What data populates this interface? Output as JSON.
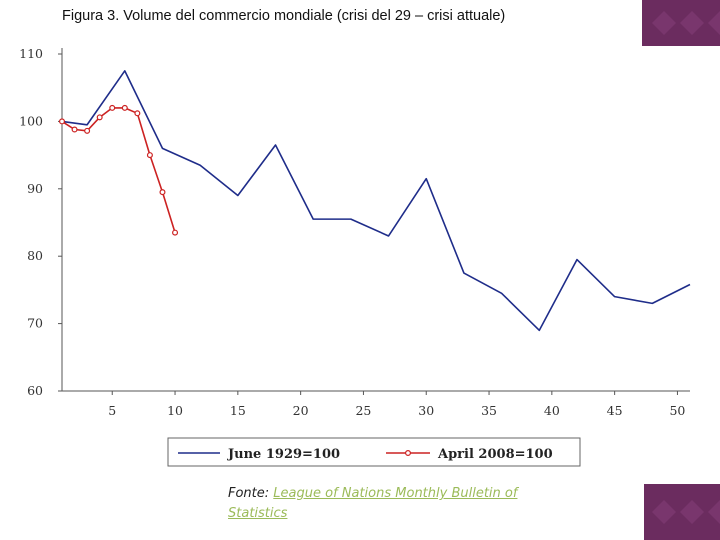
{
  "title": "Figura 3. Volume del commercio mondiale (crisi del 29 – crisi attuale)",
  "source": {
    "prefix": "Fonte: ",
    "link_text": "League of Nations Monthly Bulletin of Statistics"
  },
  "colors": {
    "series_1929": "#1f2d8a",
    "series_2008": "#cc2222",
    "deco": "#6b2c5f",
    "link": "#9bbb59"
  },
  "chart_data": {
    "type": "line",
    "title": "",
    "xlabel": "",
    "ylabel": "",
    "xlim": [
      1,
      51
    ],
    "ylim": [
      60,
      110
    ],
    "xticks": [
      5,
      10,
      15,
      20,
      25,
      30,
      35,
      40,
      45,
      50
    ],
    "xtick_labels": [
      "5",
      "10",
      "15",
      "20",
      "25",
      "30",
      "35",
      "40",
      "45",
      "50"
    ],
    "yticks": [
      60,
      70,
      80,
      90,
      100,
      110
    ],
    "ytick_labels": [
      "60",
      "70",
      "80",
      "90",
      "100",
      "110"
    ],
    "grid": false,
    "legend": "bottom",
    "series": [
      {
        "name": "June 1929=100",
        "markers": false,
        "x": [
          1,
          3,
          6,
          9,
          12,
          15,
          18,
          21,
          24,
          27,
          30,
          33,
          36,
          39,
          42,
          45,
          48,
          51
        ],
        "y": [
          100,
          99.5,
          107.5,
          96,
          93.5,
          89,
          96.5,
          85.5,
          85.5,
          83,
          91.5,
          77.5,
          74.5,
          69,
          79.5,
          74,
          73,
          75.8
        ]
      },
      {
        "name": "April 2008=100",
        "markers": true,
        "x": [
          1,
          2,
          3,
          4,
          5,
          6,
          7,
          8,
          9,
          10
        ],
        "y": [
          100,
          98.8,
          98.6,
          100.6,
          102,
          102,
          101.2,
          95,
          89.5,
          83.5
        ]
      }
    ]
  }
}
